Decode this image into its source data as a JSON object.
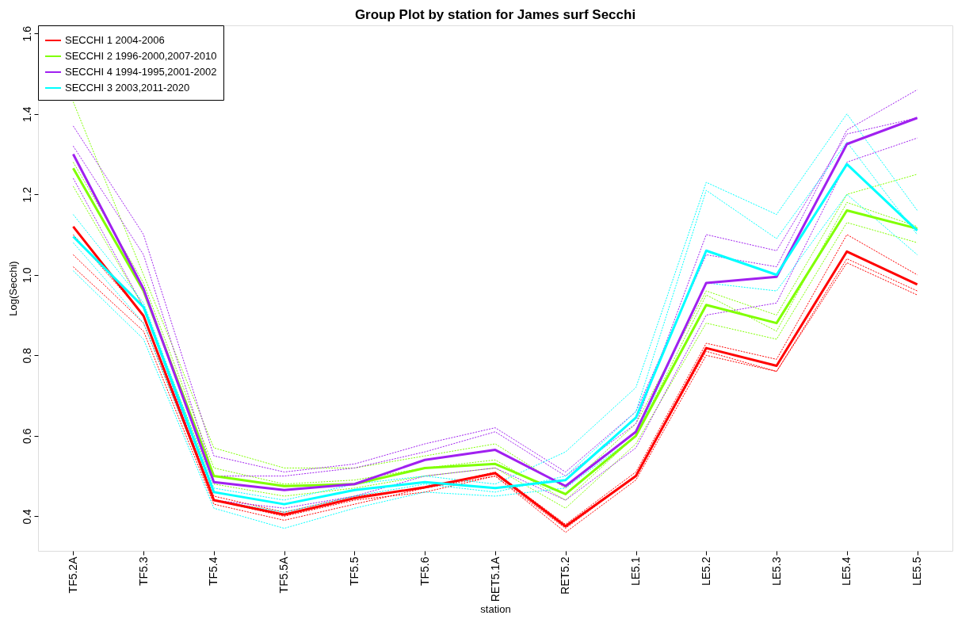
{
  "chart_data": {
    "type": "line",
    "title": "Group Plot by station for James surf Secchi",
    "xlabel": "station",
    "ylabel": "Log(Secchi)",
    "categories": [
      "TF5.2A",
      "TF5.3",
      "TF5.4",
      "TF5.5A",
      "TF5.5",
      "TF5.6",
      "RET5.1A",
      "RET5.2",
      "LE5.1",
      "LE5.2",
      "LE5.3",
      "LE5.4",
      "LE5.5"
    ],
    "ylim": [
      0.314,
      1.62
    ],
    "yticks": [
      0.4,
      0.6,
      0.8,
      {
        "value": 1.0,
        "label": "1.0"
      },
      1.2,
      1.4,
      1.6
    ],
    "grid": false,
    "legend": "top left",
    "marker": "none",
    "series": [
      {
        "color": "#ff0000",
        "line_style": "dashed",
        "values": [
          1.02,
          0.86,
          0.43,
          0.39,
          0.43,
          0.47,
          0.5,
          0.36,
          0.49,
          0.8,
          0.76,
          1.03,
          0.95
        ]
      },
      {
        "color": "#ff0000",
        "line_style": "dashed",
        "values": [
          1.1,
          0.9,
          0.45,
          0.41,
          0.45,
          0.47,
          0.51,
          0.38,
          0.51,
          0.83,
          0.79,
          1.1,
          1.0
        ]
      },
      {
        "color": "#ff0000",
        "line_style": "dashed",
        "values": [
          1.05,
          0.88,
          0.44,
          0.4,
          0.44,
          0.46,
          0.5,
          0.37,
          0.5,
          0.81,
          0.76,
          1.04,
          0.96
        ]
      },
      {
        "color": "#80ff00",
        "line_style": "dashed",
        "values": [
          1.43,
          1.0,
          0.57,
          0.52,
          0.52,
          0.55,
          0.58,
          0.47,
          0.63,
          0.96,
          0.9,
          1.2,
          1.25
        ]
      },
      {
        "color": "#80ff00",
        "line_style": "dashed",
        "values": [
          1.22,
          0.92,
          0.48,
          0.45,
          0.47,
          0.5,
          0.52,
          0.42,
          0.58,
          0.88,
          0.84,
          1.13,
          1.08
        ]
      },
      {
        "color": "#80ff00",
        "line_style": "dashed",
        "values": [
          1.28,
          0.98,
          0.52,
          0.48,
          0.49,
          0.52,
          0.54,
          0.44,
          0.6,
          0.95,
          0.86,
          1.18,
          1.12
        ]
      },
      {
        "color": "#a020f0",
        "line_style": "dashed",
        "values": [
          1.37,
          1.1,
          0.55,
          0.51,
          0.53,
          0.58,
          0.62,
          0.51,
          0.66,
          1.05,
          1.02,
          1.36,
          1.46
        ]
      },
      {
        "color": "#a020f0",
        "line_style": "dashed",
        "values": [
          1.24,
          0.92,
          0.44,
          0.42,
          0.45,
          0.5,
          0.52,
          0.44,
          0.57,
          0.9,
          0.93,
          1.28,
          1.34
        ]
      },
      {
        "color": "#a020f0",
        "line_style": "dashed",
        "values": [
          1.32,
          1.05,
          0.5,
          0.5,
          0.52,
          0.56,
          0.61,
          0.5,
          0.63,
          1.1,
          1.06,
          1.35,
          1.39
        ]
      },
      {
        "color": "#00ffff",
        "line_style": "dashed",
        "values": [
          1.15,
          0.93,
          0.47,
          0.44,
          0.48,
          0.5,
          0.48,
          0.56,
          0.72,
          1.23,
          1.15,
          1.4,
          1.16
        ]
      },
      {
        "color": "#00ffff",
        "line_style": "dashed",
        "values": [
          1.01,
          0.84,
          0.42,
          0.37,
          0.42,
          0.46,
          0.45,
          0.47,
          0.6,
          0.98,
          0.96,
          1.2,
          1.05
        ]
      },
      {
        "color": "#00ffff",
        "line_style": "dashed",
        "values": [
          1.08,
          0.88,
          0.44,
          0.41,
          0.45,
          0.48,
          0.46,
          0.5,
          0.66,
          1.21,
          1.09,
          1.33,
          1.1
        ]
      },
      {
        "name": "SECCHI 1 2004-2006",
        "color": "#ff0000",
        "line_style": "solid",
        "values": [
          1.12,
          0.898,
          0.44,
          0.404,
          0.445,
          0.472,
          0.507,
          0.375,
          0.5,
          0.818,
          0.774,
          1.058,
          0.976
        ]
      },
      {
        "name": "SECCHI 2 1996-2000,2007-2010",
        "color": "#80ff00",
        "line_style": "solid",
        "values": [
          1.265,
          0.96,
          0.5,
          0.475,
          0.48,
          0.52,
          0.53,
          0.455,
          0.6,
          0.925,
          0.88,
          1.16,
          1.115
        ]
      },
      {
        "name": "SECCHI 4 1994-1995,2001-2002",
        "color": "#a020f0",
        "line_style": "solid",
        "values": [
          1.3,
          0.965,
          0.485,
          0.465,
          0.48,
          0.54,
          0.565,
          0.475,
          0.61,
          0.98,
          0.995,
          1.325,
          1.39
        ]
      },
      {
        "name": "SECCHI 3 2003,2011-2020",
        "color": "#00ffff",
        "line_style": "solid",
        "values": [
          1.095,
          0.92,
          0.46,
          0.43,
          0.465,
          0.485,
          0.47,
          0.49,
          0.645,
          1.06,
          1.0,
          1.275,
          1.11
        ]
      }
    ]
  }
}
